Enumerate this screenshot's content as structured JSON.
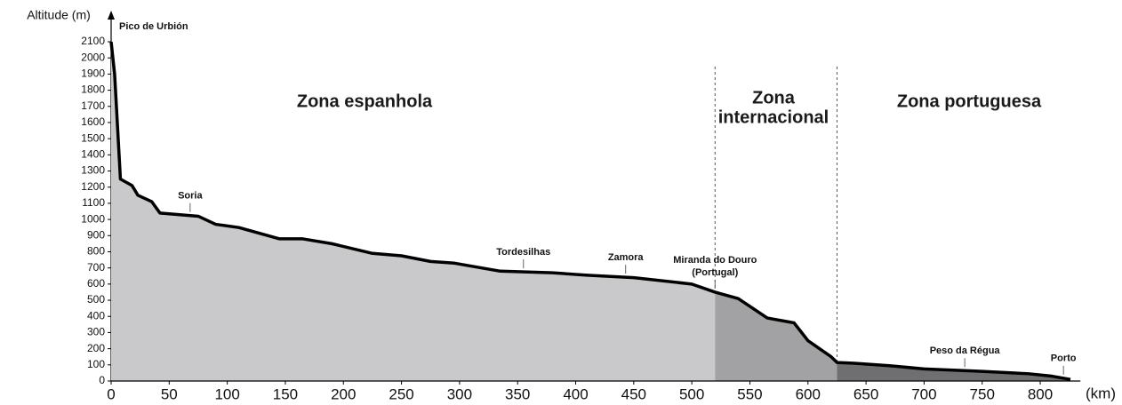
{
  "chart_data": {
    "type": "area",
    "y_label": "Altitude (m)",
    "x_label": "(km)",
    "x": [
      0,
      3,
      8,
      18,
      23,
      35,
      42,
      75,
      90,
      110,
      145,
      165,
      190,
      225,
      250,
      275,
      295,
      335,
      380,
      410,
      450,
      500,
      520,
      540,
      565,
      588,
      600,
      620,
      625,
      640,
      670,
      700,
      750,
      790,
      810,
      826
    ],
    "series": [
      {
        "color": "#000000",
        "values": [
          2100,
          1900,
          1250,
          1210,
          1150,
          1110,
          1040,
          1020,
          970,
          950,
          880,
          880,
          850,
          790,
          775,
          740,
          730,
          680,
          670,
          655,
          640,
          600,
          550,
          510,
          390,
          360,
          250,
          150,
          115,
          110,
          95,
          75,
          60,
          45,
          30,
          10
        ]
      }
    ],
    "zones": [
      {
        "name": [
          "Zona espanhola"
        ],
        "from": 0,
        "to": 520,
        "color": "#c9c9cc"
      },
      {
        "name": [
          "Zona",
          "internacional"
        ],
        "from": 520,
        "to": 625,
        "color": "#a2a2a4"
      },
      {
        "name": [
          "Zona portuguesa"
        ],
        "from": 625,
        "to": 826,
        "color": "#6f6f71"
      }
    ],
    "annotations": [
      {
        "x": 0,
        "label": [
          "Pico de Urbión"
        ]
      },
      {
        "x": 68,
        "label": [
          "Soria"
        ]
      },
      {
        "x": 355,
        "label": [
          "Tordesilhas"
        ]
      },
      {
        "x": 443,
        "label": [
          "Zamora"
        ]
      },
      {
        "x": 520,
        "label": [
          "Miranda do Douro",
          "(Portugal)"
        ]
      },
      {
        "x": 735,
        "label": [
          "Peso da Régua"
        ]
      },
      {
        "x": 820,
        "label": [
          "Porto"
        ]
      }
    ],
    "xlim": [
      0,
      830
    ],
    "ylim": [
      0,
      2100
    ],
    "xticks": [
      0,
      50,
      100,
      150,
      200,
      250,
      300,
      350,
      400,
      450,
      500,
      550,
      600,
      650,
      700,
      750,
      800
    ],
    "yticks": [
      0,
      100,
      200,
      300,
      400,
      500,
      600,
      700,
      800,
      900,
      1000,
      1100,
      1200,
      1300,
      1400,
      1500,
      1600,
      1700,
      1800,
      1900,
      2000,
      2100
    ]
  }
}
